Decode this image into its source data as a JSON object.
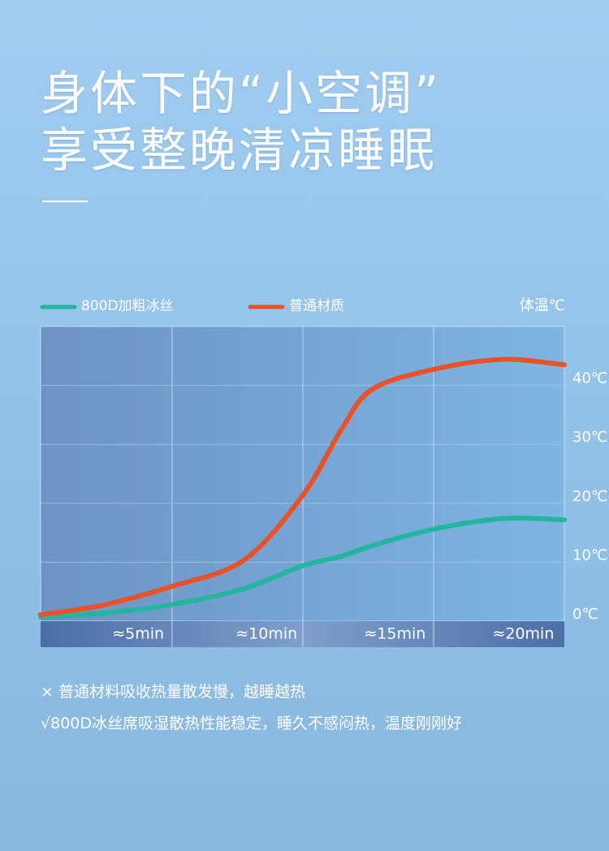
{
  "header": {
    "lines": [
      "身体下的“小空调”",
      "享受整晚清凉睡眠"
    ]
  },
  "chart_data": {
    "type": "line",
    "ylabel": "体温℃",
    "x": [
      1.2,
      3.7,
      6.3,
      9.1,
      11.4,
      12.9,
      14.1,
      16.5,
      19.2,
      21.6
    ],
    "series": [
      {
        "name": "800D加粗冰丝",
        "color": "#23b59d",
        "values": [
          0.7,
          1.4,
          2.8,
          5.5,
          9.4,
          11.0,
          12.8,
          15.6,
          17.4,
          17.2
        ]
      },
      {
        "name": "普通材质",
        "color": "#ea5127",
        "values": [
          1.1,
          2.8,
          5.9,
          10.3,
          21.3,
          32.4,
          39.3,
          42.7,
          44.4,
          43.5
        ]
      }
    ],
    "xlim": [
      1.2,
      21.6
    ],
    "xticks": [
      {
        "value": 5,
        "label": "≈5min"
      },
      {
        "value": 10,
        "label": "≈10min"
      },
      {
        "value": 15,
        "label": "≈15min"
      },
      {
        "value": 20,
        "label": "≈20min"
      }
    ],
    "ylim": [
      0,
      50
    ],
    "yticks": [
      {
        "value": 0,
        "label": "0℃"
      },
      {
        "value": 10,
        "label": "10℃"
      },
      {
        "value": 20,
        "label": "20℃"
      },
      {
        "value": 30,
        "label": "30℃"
      },
      {
        "value": 40,
        "label": "40℃"
      }
    ],
    "grid": true
  },
  "notes": [
    "× 普通材料吸收热量散发慢，越睡越热",
    "√800D冰丝席吸湿散热性能稳定，睡久不感闷热，温度刚刚好"
  ]
}
